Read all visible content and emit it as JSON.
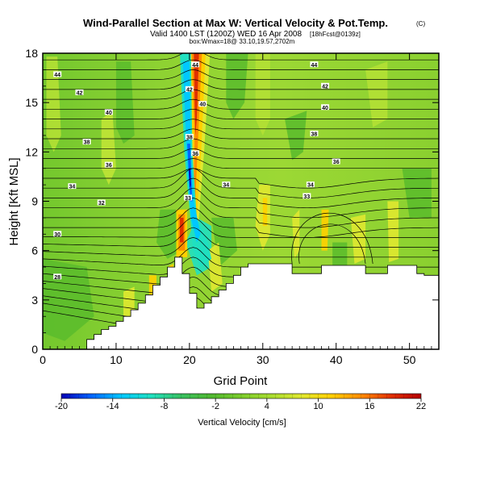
{
  "chart_data": {
    "type": "heatmap",
    "title": "Wind-Parallel Section at Max W: Vertical Velocity & Pot.Temp.",
    "title_mark": "(C)",
    "subtitle_line1": "Valid 1400 LST (1200Z) WED 16 Apr 2008",
    "subtitle_line1_tag": "[18hFcst@0139z]",
    "subtitle_line2": "box:Wmax=18@ 33.10,19.57,2702m",
    "xlabel": "Grid Point",
    "ylabel": "Height [Kft MSL]",
    "xlim": [
      0,
      54
    ],
    "ylim": [
      0,
      18
    ],
    "x_ticks": [
      "0",
      "10",
      "20",
      "30",
      "40",
      "50"
    ],
    "y_ticks": [
      "0",
      "3",
      "6",
      "9",
      "12",
      "15",
      "18"
    ],
    "colorbar": {
      "label": "Vertical Velocity [cm/s]",
      "range": [
        -20,
        22
      ],
      "tick_labels": [
        "-20",
        "-14",
        "-8",
        "-2",
        "4",
        "10",
        "16",
        "22"
      ],
      "colors": [
        "#0000b4",
        "#0064ff",
        "#00c8ff",
        "#20e0c0",
        "#38c060",
        "#50b830",
        "#7ccc2c",
        "#a8dc30",
        "#e0e830",
        "#ffd000",
        "#ff8c00",
        "#e03000",
        "#b40000"
      ]
    },
    "theta_contour_labels": [
      {
        "text": "44",
        "x": 2,
        "y": 16.7
      },
      {
        "text": "42",
        "x": 5,
        "y": 15.6
      },
      {
        "text": "40",
        "x": 9,
        "y": 14.4
      },
      {
        "text": "38",
        "x": 6,
        "y": 12.6
      },
      {
        "text": "36",
        "x": 9,
        "y": 11.2
      },
      {
        "text": "34",
        "x": 4,
        "y": 9.9
      },
      {
        "text": "32",
        "x": 8,
        "y": 8.9
      },
      {
        "text": "30",
        "x": 2,
        "y": 7.0
      },
      {
        "text": "28",
        "x": 2,
        "y": 4.4
      },
      {
        "text": "44",
        "x": 20.8,
        "y": 17.3
      },
      {
        "text": "42",
        "x": 20,
        "y": 15.8
      },
      {
        "text": "40",
        "x": 21.8,
        "y": 14.9
      },
      {
        "text": "38",
        "x": 20,
        "y": 12.9
      },
      {
        "text": "36",
        "x": 20.8,
        "y": 11.9
      },
      {
        "text": "34",
        "x": 25,
        "y": 10.0
      },
      {
        "text": "33",
        "x": 19.8,
        "y": 9.2
      },
      {
        "text": "44",
        "x": 37,
        "y": 17.3
      },
      {
        "text": "42",
        "x": 38.5,
        "y": 16.0
      },
      {
        "text": "40",
        "x": 38.5,
        "y": 14.7
      },
      {
        "text": "38",
        "x": 37,
        "y": 13.1
      },
      {
        "text": "36",
        "x": 40,
        "y": 11.4
      },
      {
        "text": "34",
        "x": 36.5,
        "y": 10.0
      },
      {
        "text": "33",
        "x": 36,
        "y": 9.3
      }
    ],
    "terrain_profile": {
      "x": [
        0,
        6,
        6,
        7,
        7,
        8,
        8,
        9,
        9,
        10,
        10,
        11,
        11,
        12,
        12,
        13,
        13,
        14,
        14,
        15,
        15,
        16,
        16,
        17,
        17,
        18,
        18,
        19,
        19,
        20,
        20,
        21,
        21,
        22,
        22,
        23,
        23,
        24,
        24,
        25,
        25,
        26,
        26,
        27,
        27,
        28,
        28,
        29,
        29,
        34,
        34,
        38,
        38,
        44,
        44,
        47,
        47,
        51,
        51,
        52,
        52,
        54
      ],
      "height": [
        0,
        0,
        0.6,
        0.6,
        0.9,
        0.9,
        1.2,
        1.2,
        1.4,
        1.4,
        1.7,
        1.7,
        2.0,
        2.0,
        2.4,
        2.4,
        2.8,
        2.8,
        3.3,
        3.3,
        3.9,
        3.9,
        4.4,
        4.4,
        5.0,
        5.0,
        5.6,
        5.6,
        4.6,
        4.6,
        3.4,
        3.4,
        2.5,
        2.5,
        2.8,
        2.8,
        3.2,
        3.2,
        3.6,
        3.6,
        4.0,
        4.0,
        4.5,
        4.5,
        5.0,
        5.0,
        5.2,
        5.2,
        5.2,
        5.2,
        4.6,
        4.6,
        5.1,
        5.1,
        4.6,
        4.6,
        5.1,
        5.1,
        4.6,
        4.6,
        4.5,
        4.5
      ]
    }
  }
}
